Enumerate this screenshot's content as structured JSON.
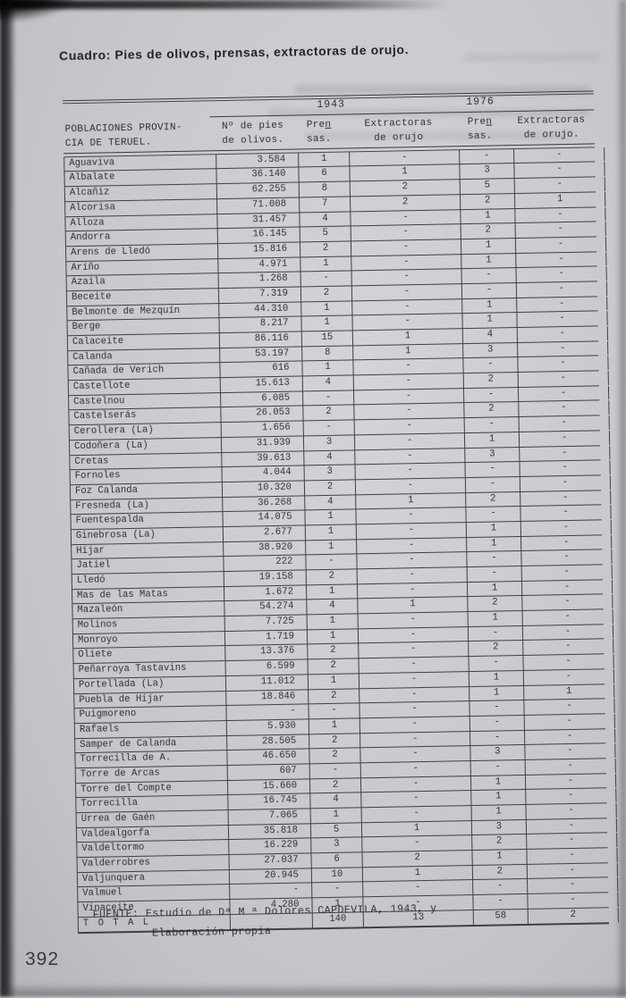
{
  "page": {
    "title": "Cuadro: Pies de olivos, prensas, extractoras de orujo.",
    "folio": "392",
    "fuente_line1": "FUENTE: Estudio de Dª M ª Dolores CAPDEVILA, 1943, y",
    "fuente_line2": "Elaboración propia"
  },
  "colors": {
    "page_background": "#c9c9cd",
    "ink": "#2f2f33",
    "table_line": "#3f3f44"
  },
  "table": {
    "year_headers": [
      "1943",
      "1976"
    ],
    "columns": {
      "pop_line1": "POBLACIONES PROVIN-",
      "pop_line2": "CIA DE TERUEL.",
      "pies_line1": "Nº de pies",
      "pies_line2": "de olivos.",
      "pren1_line1": "Pren",
      "pren1_line2": "sas.",
      "ext1_line1": "Extractoras",
      "ext1_line2": "de orujo",
      "pren2_line1": "Pren",
      "pren2_line2": "sas.",
      "ext2_line1": "Extractoras",
      "ext2_line2": "de orujo."
    },
    "rows": [
      [
        "Aguaviva",
        "3.584",
        "1",
        "-",
        "-",
        "-"
      ],
      [
        "Albalate",
        "36.140",
        "6",
        "1",
        "3",
        "-"
      ],
      [
        "Alcañiz",
        "62.255",
        "8",
        "2",
        "5",
        "-"
      ],
      [
        "Alcorisa",
        "71.008",
        "7",
        "2",
        "2",
        "1"
      ],
      [
        "Alloza",
        "31.457",
        "4",
        "-",
        "1",
        "-"
      ],
      [
        "Andorra",
        "16.145",
        "5",
        "-",
        "2",
        "-"
      ],
      [
        "Arens de Lledó",
        "15.816",
        "2",
        "-",
        "1",
        "-"
      ],
      [
        "Ariño",
        "4.971",
        "1",
        "-",
        "1",
        "-"
      ],
      [
        "Azaila",
        "1.268",
        "-",
        "-",
        "-",
        "-"
      ],
      [
        "Beceite",
        "7.319",
        "2",
        "-",
        "-",
        "-"
      ],
      [
        "Belmonte de Mezquín",
        "44.310",
        "1",
        "-",
        "1",
        "-"
      ],
      [
        "Berge",
        "8.217",
        "1",
        "-",
        "1",
        "-"
      ],
      [
        "Calaceite",
        "86.116",
        "15",
        "1",
        "4",
        "-"
      ],
      [
        "Calanda",
        "53.197",
        "8",
        "1",
        "3",
        "-"
      ],
      [
        "Cañada de Verich",
        "616",
        "1",
        "-",
        "-",
        "-"
      ],
      [
        "Castellote",
        "15.613",
        "4",
        "-",
        "2",
        "-"
      ],
      [
        "Castelnou",
        "6.085",
        "-",
        "-",
        "-",
        "-"
      ],
      [
        "Castelserás",
        "26.053",
        "2",
        "-",
        "2",
        "-"
      ],
      [
        "Cerollera (La)",
        "1.656",
        "-",
        "-",
        "-",
        "-"
      ],
      [
        "Codoñera (La)",
        "31.939",
        "3",
        "-",
        "1",
        "-"
      ],
      [
        "Cretas",
        "39.613",
        "4",
        "-",
        "3",
        "-"
      ],
      [
        "Fornoles",
        "4.044",
        "3",
        "-",
        "-",
        "-"
      ],
      [
        "Foz Calanda",
        "10.320",
        "2",
        "-",
        "-",
        "-"
      ],
      [
        "Fresneda (La)",
        "36.268",
        "4",
        "1",
        "2",
        "-"
      ],
      [
        "Fuentespalda",
        "14.075",
        "1",
        "-",
        "-",
        "-"
      ],
      [
        "Ginebrosa (La)",
        "2.677",
        "1",
        "-",
        "1",
        "-"
      ],
      [
        "Híjar",
        "38.920",
        "1",
        "-",
        "1",
        "-"
      ],
      [
        "Jatiel",
        "222",
        "-",
        "-",
        "-",
        "-"
      ],
      [
        "Lledó",
        "19.158",
        "2",
        "-",
        "-",
        "-"
      ],
      [
        "Mas de las Matas",
        "1.672",
        "1",
        "-",
        "1",
        "-"
      ],
      [
        "Mazaleón",
        "54.274",
        "4",
        "1",
        "2",
        "-"
      ],
      [
        "Molinos",
        "7.725",
        "1",
        "-",
        "1",
        "-"
      ],
      [
        "Monroyo",
        "1.719",
        "1",
        "-",
        "-",
        "-"
      ],
      [
        "Oliete",
        "13.376",
        "2",
        "-",
        "2",
        "-"
      ],
      [
        "Peñarroya Tastavins",
        "6.599",
        "2",
        "-",
        "-",
        "-"
      ],
      [
        "Portellada (La)",
        "11.012",
        "1",
        "-",
        "1",
        "-"
      ],
      [
        "Puebla de Híjar",
        "18.846",
        "2",
        "-",
        "1",
        "1"
      ],
      [
        "Puigmoreno",
        "-",
        "-",
        "-",
        "-",
        "-"
      ],
      [
        "Rafaels",
        "5.930",
        "1",
        "-",
        "-",
        "-"
      ],
      [
        "Samper de Calanda",
        "28.505",
        "2",
        "-",
        "-",
        "-"
      ],
      [
        "Torrecilla de A.",
        "46.650",
        "2",
        "-",
        "3",
        "-"
      ],
      [
        "Torre de Arcas",
        "607",
        "-",
        "-",
        "-",
        "-"
      ],
      [
        "Torre del Compte",
        "15.660",
        "2",
        "-",
        "1",
        "-"
      ],
      [
        "Torrecilla",
        "16.745",
        "4",
        "-",
        "1",
        "-"
      ],
      [
        "Urrea de Gaén",
        "7.065",
        "1",
        "-",
        "1",
        "-"
      ],
      [
        "Valdealgorfa",
        "35.818",
        "5",
        "1",
        "3",
        "-"
      ],
      [
        "Valdeltormo",
        "16.229",
        "3",
        "-",
        "2",
        "-"
      ],
      [
        "Valderrobres",
        "27.037",
        "6",
        "2",
        "1",
        "-"
      ],
      [
        "Valjunquera",
        "20.945",
        "10",
        "1",
        "2",
        "-"
      ],
      [
        "Valmuel",
        "-",
        "-",
        "-",
        "-",
        "-"
      ],
      [
        "Vinaceite",
        "4.280",
        "1",
        "-",
        "-",
        "-"
      ]
    ],
    "total_row": {
      "label": "T O T A L",
      "values": [
        "",
        "140",
        "13",
        "58",
        "2"
      ]
    }
  }
}
